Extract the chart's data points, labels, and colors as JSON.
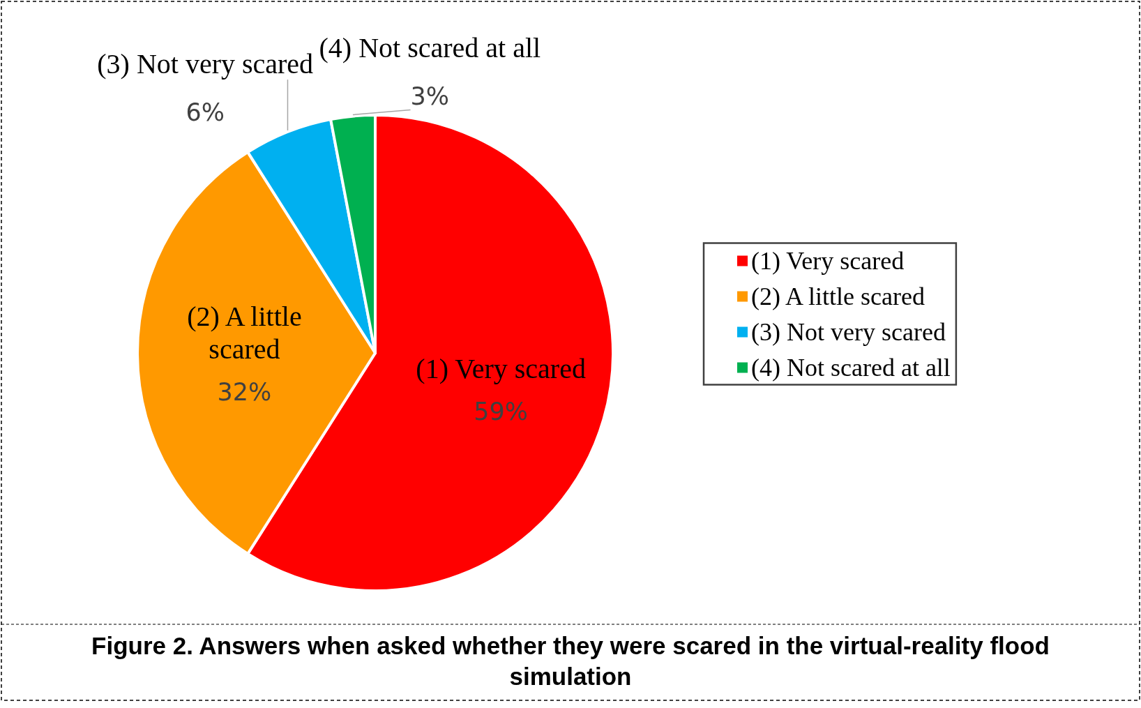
{
  "chart_data": {
    "type": "pie",
    "title": "Figure 2. Answers when asked whether they were scared in the virtual-reality flood simulation",
    "categories": [
      "(1) Very scared",
      "(2) A little scared",
      "(3) Not very scared",
      "(4) Not scared at all"
    ],
    "values": [
      59,
      32,
      6,
      3
    ],
    "value_labels": [
      "59%",
      "32%",
      "6%",
      "3%"
    ],
    "colors": [
      "#ff0000",
      "#ff9900",
      "#00b0f0",
      "#00b050"
    ],
    "legend": "right"
  }
}
